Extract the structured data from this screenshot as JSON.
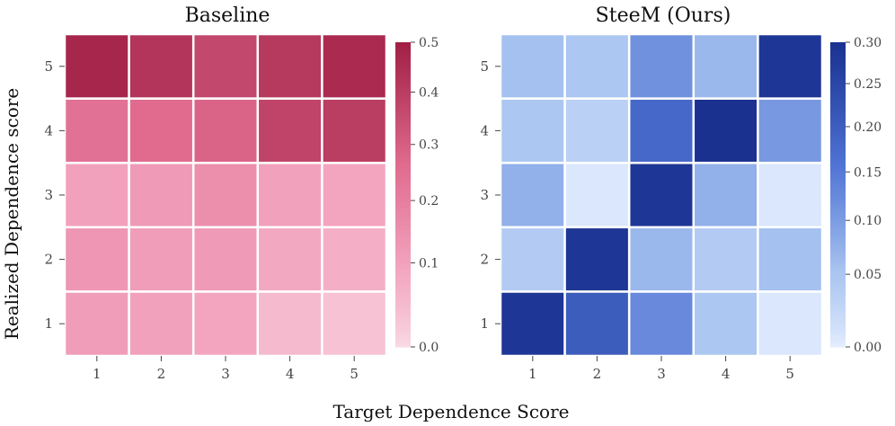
{
  "xlabel": "Target Dependence Score",
  "ylabel": "Realized Dependence score",
  "chart_data": [
    {
      "type": "heatmap",
      "title": "Baseline",
      "x_categories": [
        "1",
        "2",
        "3",
        "4",
        "5"
      ],
      "y_categories": [
        "1",
        "2",
        "3",
        "4",
        "5"
      ],
      "values": [
        [
          0.15,
          0.14,
          0.13,
          0.07,
          0.05
        ],
        [
          0.17,
          0.15,
          0.16,
          0.12,
          0.1
        ],
        [
          0.14,
          0.16,
          0.19,
          0.14,
          0.13
        ],
        [
          0.28,
          0.3,
          0.32,
          0.4,
          0.42
        ],
        [
          0.48,
          0.44,
          0.39,
          0.43,
          0.47
        ]
      ],
      "colorbar": {
        "min": 0.0,
        "max": 0.5,
        "ticks": [
          0.0,
          0.1,
          0.2,
          0.3,
          0.4,
          0.5
        ],
        "tick_labels": [
          "0.0",
          "0.1",
          "0.2",
          "0.3",
          "0.4",
          "0.5"
        ],
        "scale": "power",
        "colors": [
          "#f9dce6",
          "#f3a6c0",
          "#e06b8f",
          "#a11f45"
        ]
      }
    },
    {
      "type": "heatmap",
      "title": "SteeM (Ours)",
      "x_categories": [
        "1",
        "2",
        "3",
        "4",
        "5"
      ],
      "y_categories": [
        "1",
        "2",
        "3",
        "4",
        "5"
      ],
      "values": [
        [
          0.29,
          0.22,
          0.15,
          0.07,
          0.01
        ],
        [
          0.06,
          0.29,
          0.09,
          0.06,
          0.08
        ],
        [
          0.1,
          0.01,
          0.29,
          0.1,
          0.01
        ],
        [
          0.07,
          0.05,
          0.2,
          0.3,
          0.13
        ],
        [
          0.08,
          0.07,
          0.14,
          0.09,
          0.29
        ]
      ],
      "colorbar": {
        "min": 0.0,
        "max": 0.3,
        "ticks": [
          0.0,
          0.05,
          0.1,
          0.15,
          0.2,
          0.25,
          0.3
        ],
        "tick_labels": [
          "0.00",
          "0.05",
          "0.10",
          "0.15",
          "0.20",
          "0.25",
          "0.30"
        ],
        "scale": "power",
        "colors": [
          "#e6efff",
          "#a8c4f0",
          "#4f73d4",
          "#1a3190"
        ]
      }
    }
  ]
}
